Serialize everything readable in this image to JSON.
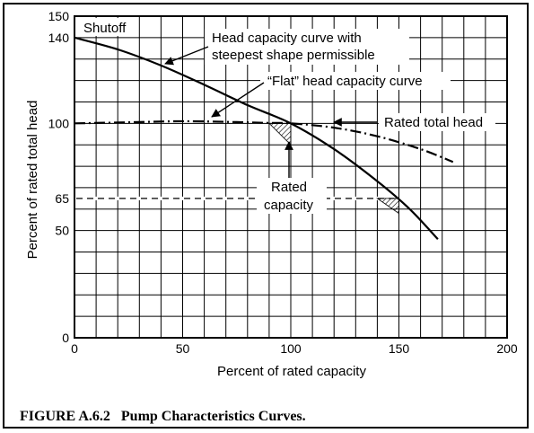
{
  "chart_data": {
    "type": "line",
    "title": "",
    "xlabel": "Percent of rated capacity",
    "ylabel": "Percent of rated total head",
    "xlim": [
      0,
      200
    ],
    "ylim": [
      0,
      150
    ],
    "x_ticks": [
      0,
      50,
      100,
      150,
      200
    ],
    "y_ticks": [
      0,
      50,
      65,
      100,
      140,
      150
    ],
    "grid": true,
    "series": [
      {
        "name": "Head capacity curve with steepest shape permissible",
        "style": "solid",
        "x": [
          0,
          20,
          40,
          60,
          80,
          100,
          120,
          140,
          155,
          168
        ],
        "y": [
          140,
          134.5,
          127,
          118,
          108.5,
          100,
          88,
          73,
          60,
          46
        ]
      },
      {
        "name": "\"Flat\" head capacity curve",
        "style": "dash-dot",
        "x": [
          0,
          25,
          50,
          75,
          90,
          100,
          120,
          140,
          160,
          175
        ],
        "y": [
          100,
          100.5,
          101,
          100.6,
          100.2,
          100,
          98,
          94,
          88,
          82
        ]
      }
    ],
    "reference_lines": [
      {
        "axis": "y",
        "value": 100,
        "label": "Rated total head"
      },
      {
        "axis": "y",
        "value": 65,
        "label": "Rated capacity",
        "style": "dashed"
      }
    ],
    "annotations": {
      "shutoff": "Shutoff",
      "steep_curve_line1": "Head capacity curve with",
      "steep_curve_line2": "steepest shape permissible",
      "flat_curve": "“Flat” head capacity curve",
      "rated_head": "Rated total head",
      "rated_capacity_line1": "Rated",
      "rated_capacity_line2": "capacity"
    }
  },
  "caption": "FIGURE A.6.2   Pump Characteristics Curves."
}
